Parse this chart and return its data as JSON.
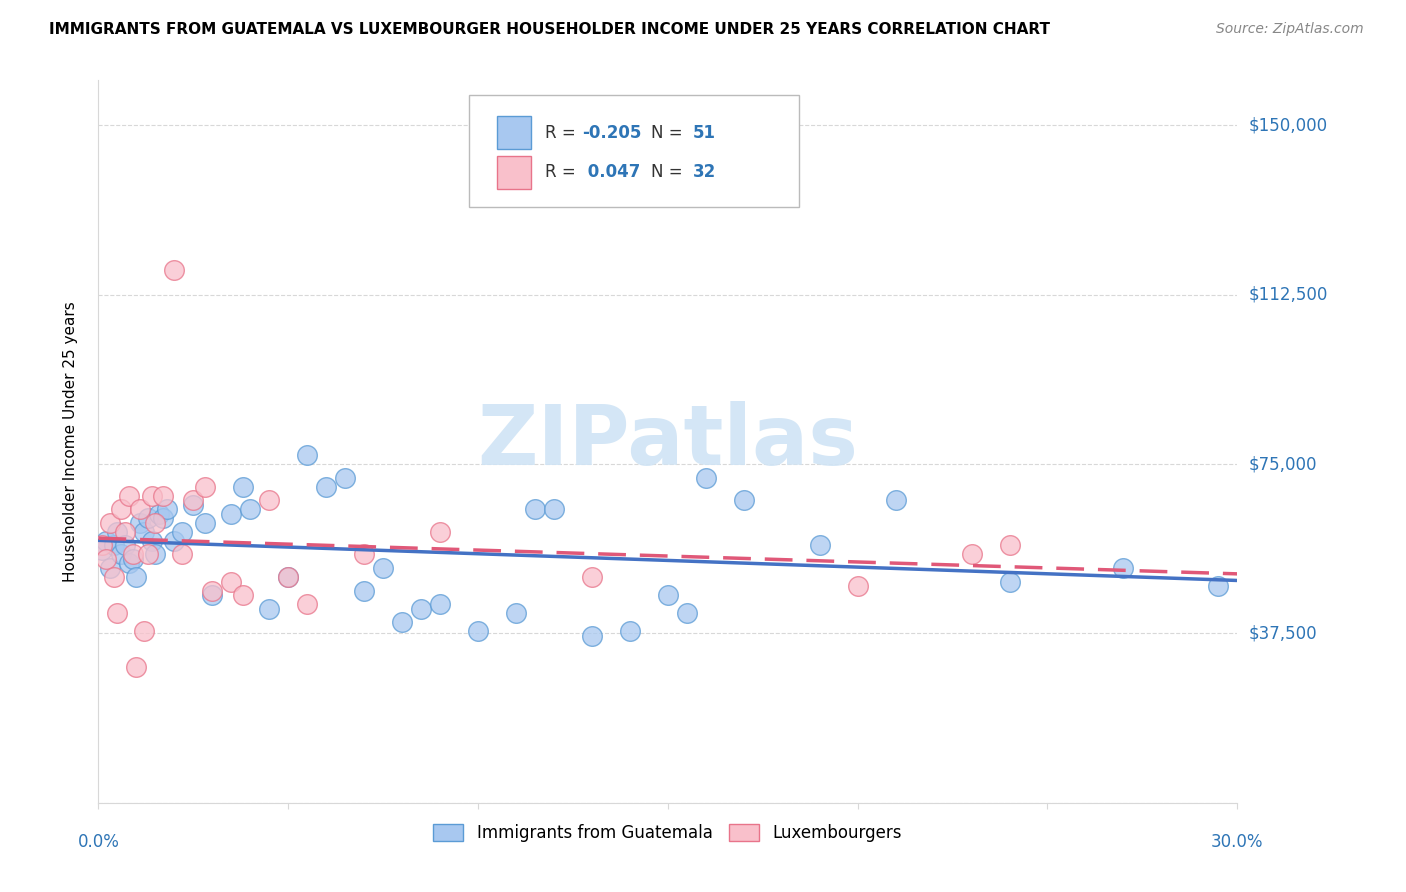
{
  "title": "IMMIGRANTS FROM GUATEMALA VS LUXEMBOURGER HOUSEHOLDER INCOME UNDER 25 YEARS CORRELATION CHART",
  "source": "Source: ZipAtlas.com",
  "ylabel": "Householder Income Under 25 years",
  "y_ticks": [
    0,
    37500,
    75000,
    112500,
    150000
  ],
  "y_tick_labels": [
    "",
    "$37,500",
    "$75,000",
    "$112,500",
    "$150,000"
  ],
  "xlim": [
    0.0,
    0.3
  ],
  "ylim": [
    0,
    160000
  ],
  "legend_blue_label": "Immigrants from Guatemala",
  "legend_pink_label": "Luxembourgers",
  "blue_scatter_color": "#a8c8f0",
  "pink_scatter_color": "#f9c0cb",
  "blue_edge_color": "#5b9bd5",
  "pink_edge_color": "#e8748a",
  "blue_line_color": "#4472c4",
  "pink_line_color": "#e05878",
  "watermark_color": "#d0e4f5",
  "grid_color": "#d8d8d8",
  "scatter_blue_x": [
    0.001,
    0.002,
    0.003,
    0.004,
    0.005,
    0.006,
    0.007,
    0.008,
    0.009,
    0.01,
    0.011,
    0.012,
    0.013,
    0.014,
    0.015,
    0.016,
    0.017,
    0.018,
    0.02,
    0.022,
    0.025,
    0.028,
    0.03,
    0.035,
    0.038,
    0.04,
    0.045,
    0.05,
    0.055,
    0.06,
    0.065,
    0.07,
    0.075,
    0.08,
    0.085,
    0.09,
    0.1,
    0.11,
    0.115,
    0.12,
    0.13,
    0.14,
    0.15,
    0.155,
    0.16,
    0.17,
    0.19,
    0.21,
    0.24,
    0.27,
    0.295
  ],
  "scatter_blue_y": [
    56000,
    58000,
    52000,
    57000,
    60000,
    55000,
    57000,
    53000,
    54000,
    50000,
    62000,
    60000,
    63000,
    58000,
    55000,
    64000,
    63000,
    65000,
    58000,
    60000,
    66000,
    62000,
    46000,
    64000,
    70000,
    65000,
    43000,
    50000,
    77000,
    70000,
    72000,
    47000,
    52000,
    40000,
    43000,
    44000,
    38000,
    42000,
    65000,
    65000,
    37000,
    38000,
    46000,
    42000,
    72000,
    67000,
    57000,
    67000,
    49000,
    52000,
    48000
  ],
  "scatter_pink_x": [
    0.001,
    0.002,
    0.003,
    0.004,
    0.005,
    0.006,
    0.007,
    0.008,
    0.009,
    0.01,
    0.011,
    0.012,
    0.013,
    0.014,
    0.015,
    0.017,
    0.02,
    0.022,
    0.025,
    0.028,
    0.03,
    0.035,
    0.038,
    0.045,
    0.05,
    0.055,
    0.07,
    0.09,
    0.13,
    0.2,
    0.23,
    0.24
  ],
  "scatter_pink_y": [
    57000,
    54000,
    62000,
    50000,
    42000,
    65000,
    60000,
    68000,
    55000,
    30000,
    65000,
    38000,
    55000,
    68000,
    62000,
    68000,
    118000,
    55000,
    67000,
    70000,
    47000,
    49000,
    46000,
    67000,
    50000,
    44000,
    55000,
    60000,
    50000,
    48000,
    55000,
    57000
  ]
}
